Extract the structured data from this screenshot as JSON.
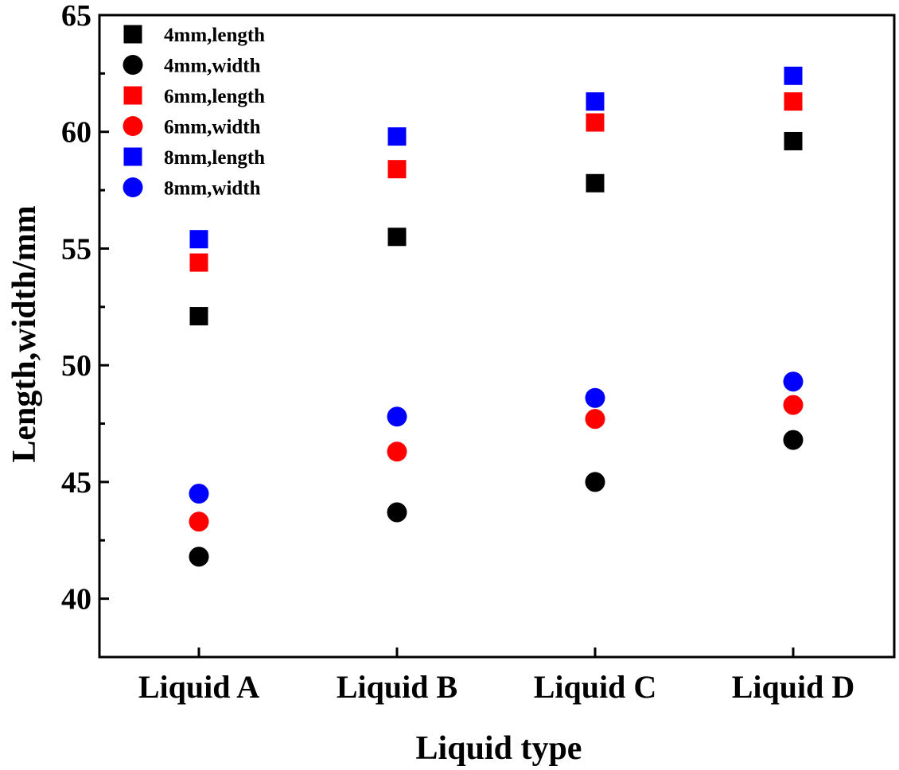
{
  "chart_data": {
    "type": "scatter",
    "title": "",
    "xlabel": "Liquid type",
    "ylabel": "Length,width/mm",
    "categories": [
      "Liquid A",
      "Liquid B",
      "Liquid C",
      "Liquid D"
    ],
    "ylim": [
      37.5,
      65
    ],
    "yticks": [
      40,
      45,
      50,
      55,
      60,
      65
    ],
    "grid": false,
    "legend_position": "top-left",
    "series": [
      {
        "name": "4mm,length",
        "marker": "square",
        "color": "#000000",
        "values": [
          52.1,
          55.5,
          57.8,
          59.6
        ]
      },
      {
        "name": "4mm,width",
        "marker": "circle",
        "color": "#000000",
        "values": [
          41.8,
          43.7,
          45.0,
          46.8
        ]
      },
      {
        "name": "6mm,length",
        "marker": "square",
        "color": "#ff0000",
        "values": [
          54.4,
          58.4,
          60.4,
          61.3
        ]
      },
      {
        "name": "6mm,width",
        "marker": "circle",
        "color": "#ff0000",
        "values": [
          43.3,
          46.3,
          47.7,
          48.3
        ]
      },
      {
        "name": "8mm,length",
        "marker": "square",
        "color": "#0000ff",
        "values": [
          55.4,
          59.8,
          61.3,
          62.4
        ]
      },
      {
        "name": "8mm,width",
        "marker": "circle",
        "color": "#0000ff",
        "values": [
          44.5,
          47.8,
          48.6,
          49.3
        ]
      }
    ]
  }
}
